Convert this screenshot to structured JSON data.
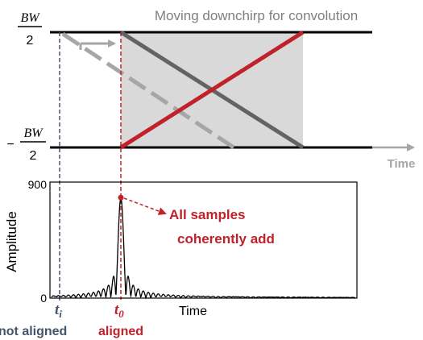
{
  "diagram": {
    "title": "Moving downchirp for convolution",
    "bw_top": {
      "numerator": "BW",
      "denominator": "2"
    },
    "bw_bottom": {
      "sign": "−",
      "numerator": "BW",
      "denominator": "2"
    },
    "time_axis_label": "Time",
    "colors": {
      "dark_chirp": "#636363",
      "light_chirp": "#a6a6a6",
      "red": "#c0212a",
      "blue": "#44546a",
      "shade": "#d9d9d9"
    }
  },
  "plot": {
    "ylabel": "Amplitude",
    "xlabel": "Time",
    "y_max_tick": "900",
    "y_zero_tick": "0",
    "annotation_line1": "All samples",
    "annotation_line2": "coherently add"
  },
  "markers": {
    "ti_base": "t",
    "ti_sub": "i",
    "t0_base": "t",
    "t0_sub": "0",
    "not_aligned_label": "not aligned",
    "aligned_label": "aligned"
  },
  "chart_data": {
    "type": "line",
    "ylabel": "Amplitude",
    "xlabel": "Time",
    "ylim": [
      0,
      900
    ],
    "peak_value": 780,
    "sidelobe_peak": 180
  }
}
